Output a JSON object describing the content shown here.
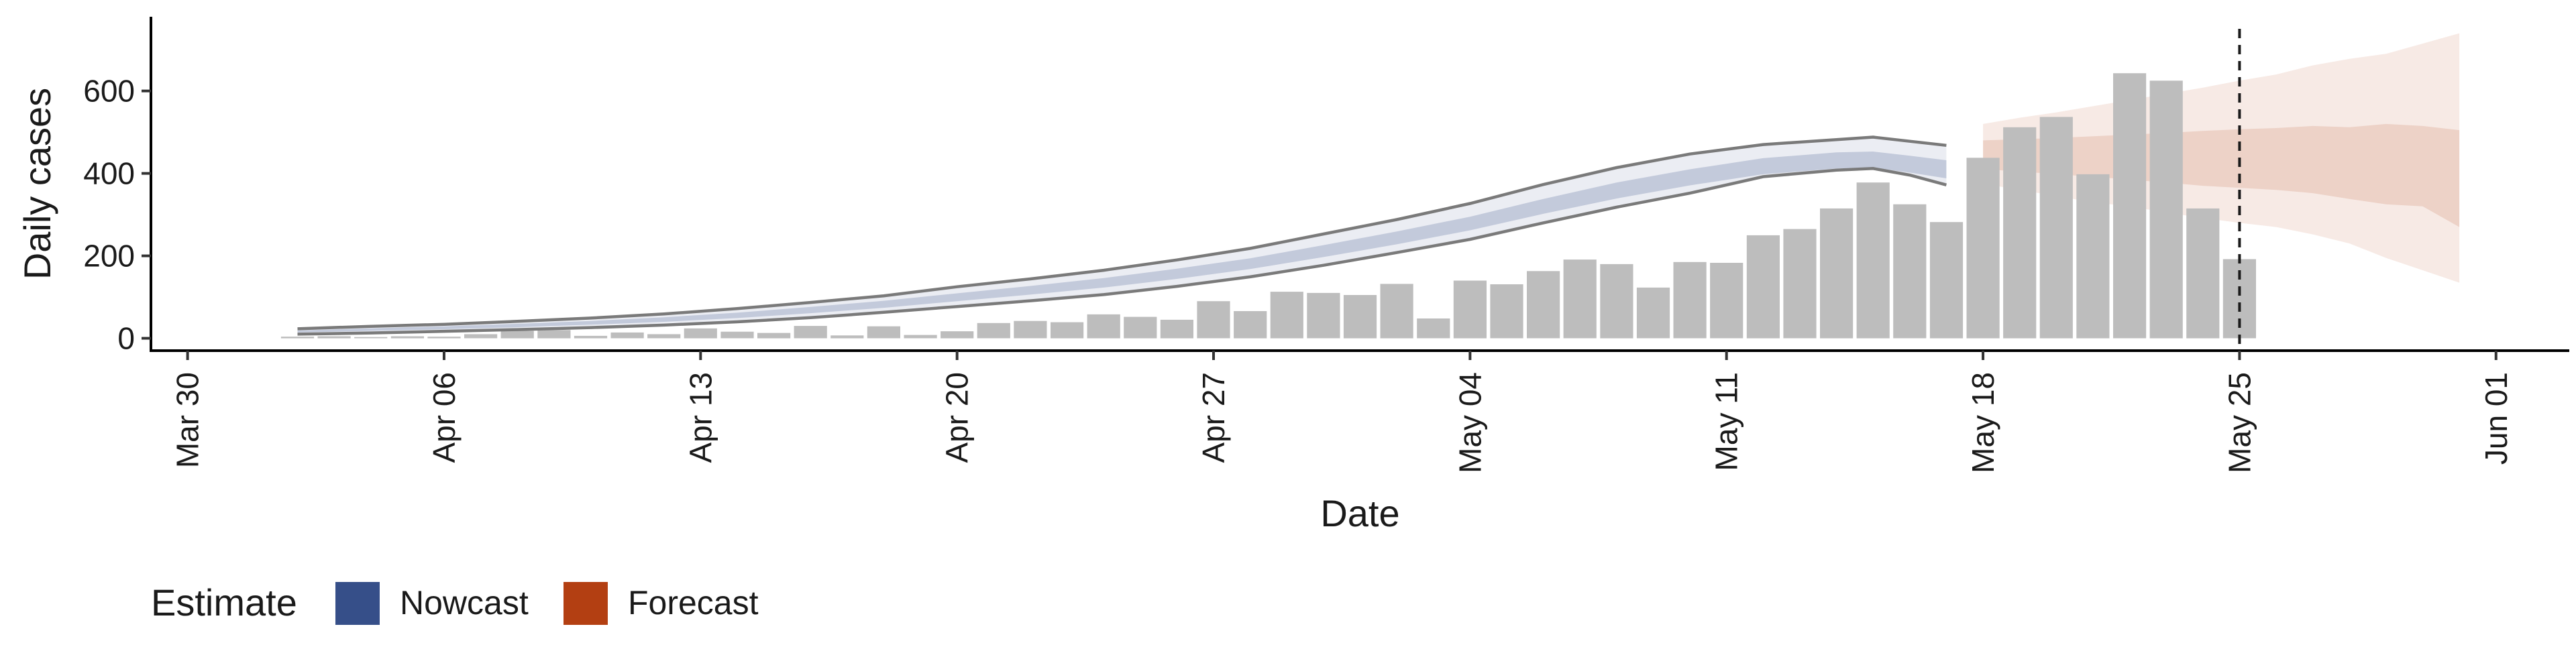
{
  "chart_data": {
    "type": "bar",
    "xlabel": "Date",
    "ylabel": "Daily cases",
    "ylim": [
      -30,
      780
    ],
    "yticks": [
      0,
      200,
      400,
      600
    ],
    "xlim": [
      "2020-03-29",
      "2020-06-03"
    ],
    "xticks": [
      {
        "date": "2020-03-30",
        "label": "Mar 30"
      },
      {
        "date": "2020-04-06",
        "label": "Apr 06"
      },
      {
        "date": "2020-04-13",
        "label": "Apr 13"
      },
      {
        "date": "2020-04-20",
        "label": "Apr 20"
      },
      {
        "date": "2020-04-27",
        "label": "Apr 27"
      },
      {
        "date": "2020-05-04",
        "label": "May 04"
      },
      {
        "date": "2020-05-11",
        "label": "May 11"
      },
      {
        "date": "2020-05-18",
        "label": "May 18"
      },
      {
        "date": "2020-05-25",
        "label": "May 25"
      },
      {
        "date": "2020-06-01",
        "label": "Jun 01"
      }
    ],
    "reference_line": {
      "date": "2020-05-25",
      "style": "dashed"
    },
    "grid": false,
    "legend": {
      "position": "bottom-left",
      "title": "Estimate",
      "entries": [
        {
          "label": "Nowcast",
          "color": "#364f89"
        },
        {
          "label": "Forecast",
          "color": "#b33f12"
        }
      ]
    },
    "observed_cases": {
      "color": "#bdbdbd",
      "dates": [
        "2020-04-02",
        "2020-04-03",
        "2020-04-04",
        "2020-04-05",
        "2020-04-06",
        "2020-04-07",
        "2020-04-08",
        "2020-04-09",
        "2020-04-10",
        "2020-04-11",
        "2020-04-12",
        "2020-04-13",
        "2020-04-14",
        "2020-04-15",
        "2020-04-16",
        "2020-04-17",
        "2020-04-18",
        "2020-04-19",
        "2020-04-20",
        "2020-04-21",
        "2020-04-22",
        "2020-04-23",
        "2020-04-24",
        "2020-04-25",
        "2020-04-26",
        "2020-04-27",
        "2020-04-28",
        "2020-04-29",
        "2020-04-30",
        "2020-05-01",
        "2020-05-02",
        "2020-05-03",
        "2020-05-04",
        "2020-05-05",
        "2020-05-06",
        "2020-05-07",
        "2020-05-08",
        "2020-05-09",
        "2020-05-10",
        "2020-05-11",
        "2020-05-12",
        "2020-05-13",
        "2020-05-14",
        "2020-05-15",
        "2020-05-16",
        "2020-05-17",
        "2020-05-18",
        "2020-05-19",
        "2020-05-20",
        "2020-05-21",
        "2020-05-22",
        "2020-05-23",
        "2020-05-24",
        "2020-05-25"
      ],
      "values": [
        4,
        5,
        3,
        5,
        4,
        10,
        18,
        20,
        6,
        14,
        10,
        24,
        16,
        13,
        30,
        7,
        29,
        8,
        17,
        37,
        42,
        39,
        58,
        52,
        45,
        90,
        66,
        113,
        110,
        105,
        132,
        48,
        140,
        131,
        163,
        191,
        180,
        123,
        185,
        183,
        250,
        265,
        315,
        378,
        325,
        282,
        438,
        512,
        537,
        398,
        643,
        625,
        315,
        192
      ]
    },
    "nowcast": {
      "color": "#364f89",
      "dates": [
        "2020-04-02",
        "2020-04-04",
        "2020-04-06",
        "2020-04-08",
        "2020-04-10",
        "2020-04-12",
        "2020-04-14",
        "2020-04-16",
        "2020-04-18",
        "2020-04-20",
        "2020-04-22",
        "2020-04-24",
        "2020-04-26",
        "2020-04-28",
        "2020-04-30",
        "2020-05-02",
        "2020-05-04",
        "2020-05-06",
        "2020-05-08",
        "2020-05-10",
        "2020-05-12",
        "2020-05-14",
        "2020-05-15",
        "2020-05-16",
        "2020-05-17"
      ],
      "outer_upper": [
        23,
        29,
        34,
        41,
        49,
        59,
        72,
        87,
        103,
        125,
        144,
        165,
        190,
        218,
        253,
        288,
        327,
        373,
        414,
        447,
        470,
        482,
        488,
        478,
        468
      ],
      "inner_upper": [
        19,
        24,
        29,
        35,
        42,
        51,
        62,
        76,
        91,
        109,
        127,
        146,
        169,
        194,
        226,
        259,
        295,
        338,
        378,
        410,
        437,
        451,
        453,
        443,
        432
      ],
      "inner_lower": [
        14,
        18,
        22,
        27,
        33,
        40,
        49,
        61,
        74,
        90,
        106,
        123,
        144,
        168,
        197,
        228,
        262,
        302,
        339,
        371,
        398,
        412,
        414,
        402,
        388
      ],
      "outer_lower": [
        10,
        13,
        17,
        21,
        26,
        32,
        40,
        50,
        63,
        77,
        91,
        106,
        126,
        149,
        177,
        208,
        240,
        280,
        318,
        352,
        392,
        408,
        412,
        396,
        372
      ]
    },
    "forecast": {
      "color": "#b33f12",
      "dates": [
        "2020-05-18",
        "2020-05-19",
        "2020-05-20",
        "2020-05-21",
        "2020-05-22",
        "2020-05-23",
        "2020-05-24",
        "2020-05-25",
        "2020-05-26",
        "2020-05-27",
        "2020-05-28",
        "2020-05-29",
        "2020-05-30",
        "2020-05-31"
      ],
      "outer_upper": [
        520,
        535,
        548,
        563,
        578,
        593,
        608,
        625,
        640,
        662,
        678,
        690,
        715,
        740
      ],
      "inner_upper": [
        480,
        483,
        486,
        490,
        494,
        498,
        503,
        507,
        510,
        515,
        512,
        520,
        515,
        505
      ],
      "inner_lower": [
        410,
        405,
        398,
        392,
        385,
        378,
        370,
        365,
        360,
        352,
        338,
        325,
        320,
        270
      ],
      "outer_lower": [
        375,
        360,
        345,
        330,
        320,
        305,
        292,
        280,
        270,
        252,
        230,
        195,
        165,
        135
      ]
    }
  }
}
